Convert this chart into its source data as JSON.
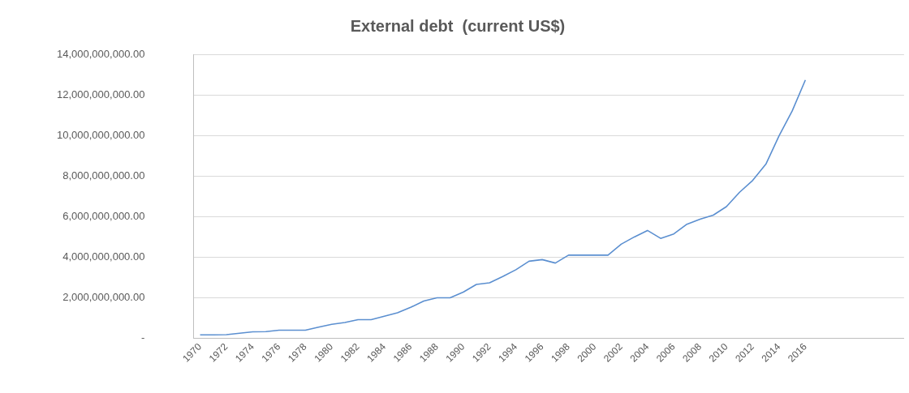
{
  "chart_data": {
    "type": "line",
    "title": "External debt  (current US$)",
    "categories": [
      "1970",
      null,
      "1972",
      null,
      "1974",
      null,
      "1976",
      null,
      "1978",
      null,
      "1980",
      null,
      "1982",
      null,
      "1984",
      null,
      "1986",
      null,
      "1988",
      null,
      "1990",
      null,
      "1992",
      null,
      "1994",
      null,
      "1996",
      null,
      "1998",
      null,
      "2000",
      null,
      "2002",
      null,
      "2004",
      null,
      "2006",
      null,
      "2008",
      null,
      "2010",
      null,
      "2012",
      null,
      "2014",
      null,
      "2016",
      null,
      null,
      null,
      null,
      null,
      null,
      null
    ],
    "series": [
      {
        "color": "#5b8fd0",
        "values": [
          160000000,
          160000000,
          170000000,
          240000000,
          310000000,
          320000000,
          390000000,
          390000000,
          390000000,
          540000000,
          680000000,
          770000000,
          910000000,
          910000000,
          1080000000,
          1250000000,
          1520000000,
          1830000000,
          1990000000,
          1990000000,
          2270000000,
          2650000000,
          2730000000,
          3040000000,
          3380000000,
          3800000000,
          3880000000,
          3710000000,
          4100000000,
          4100000000,
          4100000000,
          4100000000,
          4640000000,
          5000000000,
          5320000000,
          4930000000,
          5150000000,
          5630000000,
          5880000000,
          6080000000,
          6500000000,
          7210000000,
          7800000000,
          8600000000,
          10000000000,
          11230000000,
          12760000000,
          null,
          null,
          null,
          null,
          null,
          null,
          null
        ]
      }
    ],
    "ylim": [
      0,
      14000000000
    ],
    "yticks": [
      {
        "value": 0,
        "label": "-"
      },
      {
        "value": 2000000000,
        "label": "2,000,000,000.00"
      },
      {
        "value": 4000000000,
        "label": "4,000,000,000.00"
      },
      {
        "value": 6000000000,
        "label": "6,000,000,000.00"
      },
      {
        "value": 8000000000,
        "label": "8,000,000,000.00"
      },
      {
        "value": 10000000000,
        "label": "10,000,000,000.00"
      },
      {
        "value": 12000000000,
        "label": "12,000,000,000.00"
      },
      {
        "value": 14000000000,
        "label": "14,000,000,000.00"
      }
    ],
    "grid": "y",
    "legend": false,
    "marker": "none",
    "line_style": "solid"
  }
}
